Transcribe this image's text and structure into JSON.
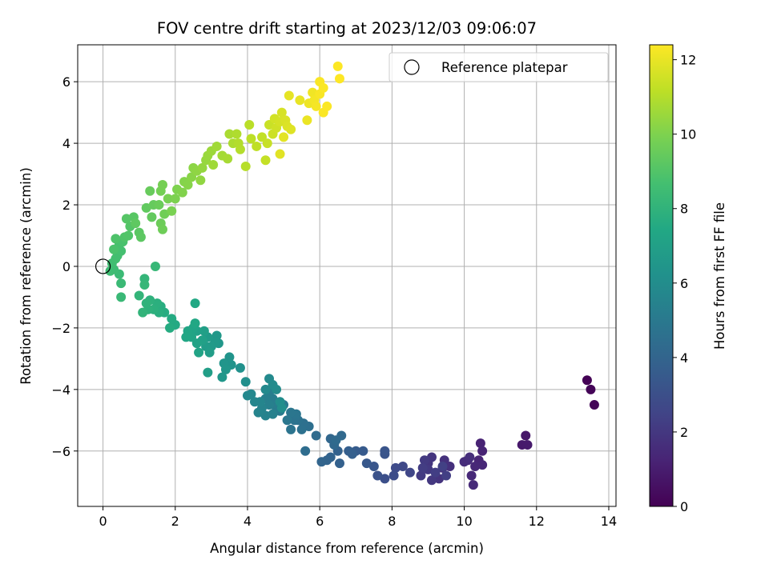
{
  "chart_data": {
    "type": "scatter",
    "title": "FOV centre drift starting at 2023/12/03 09:06:07",
    "xlabel": "Angular distance from reference (arcmin)",
    "ylabel": "Rotation from reference (arcmin)",
    "xlim": [
      -0.7,
      14.2
    ],
    "ylim": [
      -7.8,
      7.2
    ],
    "xticks": [
      0,
      2,
      4,
      6,
      8,
      10,
      12,
      14
    ],
    "yticks": [
      -6,
      -4,
      -2,
      0,
      2,
      4,
      6
    ],
    "grid": true,
    "legend": {
      "position": "top-right",
      "entries": [
        "Reference platepar"
      ]
    },
    "reference_point": {
      "x": 0,
      "y": 0
    },
    "colorbar": {
      "label": "Hours from first FF file",
      "colormap": "viridis",
      "range": [
        0,
        12.4
      ],
      "ticks": [
        0,
        2,
        4,
        6,
        8,
        10,
        12
      ]
    },
    "series": [
      {
        "color_value": "hours",
        "points": [
          [
            13.4,
            -3.7,
            0.05
          ],
          [
            13.5,
            -4.0,
            0.1
          ],
          [
            13.6,
            -4.5,
            0.15
          ],
          [
            11.7,
            -5.5,
            0.8
          ],
          [
            11.6,
            -5.8,
            0.85
          ],
          [
            11.75,
            -5.8,
            0.9
          ],
          [
            10.45,
            -5.75,
            1.2
          ],
          [
            10.5,
            -6.0,
            1.25
          ],
          [
            10.4,
            -6.3,
            1.3
          ],
          [
            10.5,
            -6.45,
            1.35
          ],
          [
            10.3,
            -6.5,
            1.4
          ],
          [
            10.2,
            -6.8,
            1.45
          ],
          [
            10.25,
            -7.1,
            1.5
          ],
          [
            10.1,
            -6.3,
            1.55
          ],
          [
            10.0,
            -6.35,
            1.6
          ],
          [
            10.15,
            -6.2,
            1.65
          ],
          [
            9.6,
            -6.5,
            1.7
          ],
          [
            9.45,
            -6.3,
            1.75
          ],
          [
            9.4,
            -6.55,
            1.8
          ],
          [
            9.3,
            -6.9,
            1.85
          ],
          [
            9.1,
            -6.2,
            1.9
          ],
          [
            9.0,
            -6.4,
            1.95
          ],
          [
            9.1,
            -6.95,
            2.0
          ],
          [
            9.0,
            -6.6,
            2.05
          ],
          [
            8.9,
            -6.3,
            2.1
          ],
          [
            8.8,
            -6.8,
            2.15
          ],
          [
            8.85,
            -6.55,
            2.2
          ],
          [
            9.2,
            -6.7,
            2.25
          ],
          [
            9.5,
            -6.8,
            2.3
          ],
          [
            9.4,
            -6.5,
            2.35
          ],
          [
            8.5,
            -6.7,
            2.6
          ],
          [
            8.3,
            -6.5,
            2.7
          ],
          [
            8.1,
            -6.55,
            2.8
          ],
          [
            8.05,
            -6.8,
            2.9
          ],
          [
            7.8,
            -6.9,
            3.0
          ],
          [
            7.6,
            -6.8,
            3.1
          ],
          [
            7.8,
            -6.1,
            3.2
          ],
          [
            7.8,
            -6.0,
            3.25
          ],
          [
            7.5,
            -6.5,
            3.3
          ],
          [
            7.3,
            -6.4,
            3.4
          ],
          [
            7.2,
            -6.0,
            3.5
          ],
          [
            7.0,
            -6.0,
            3.6
          ],
          [
            6.8,
            -6.0,
            3.7
          ],
          [
            6.9,
            -6.1,
            3.75
          ],
          [
            6.55,
            -6.4,
            3.8
          ],
          [
            6.5,
            -6.0,
            3.85
          ],
          [
            6.3,
            -6.2,
            3.9
          ],
          [
            6.2,
            -6.3,
            3.95
          ],
          [
            6.05,
            -6.35,
            4.0
          ],
          [
            6.3,
            -5.6,
            4.1
          ],
          [
            6.4,
            -5.8,
            4.15
          ],
          [
            6.6,
            -5.5,
            4.2
          ],
          [
            6.45,
            -5.65,
            4.25
          ],
          [
            5.9,
            -5.5,
            4.3
          ],
          [
            5.6,
            -6.0,
            4.4
          ],
          [
            5.7,
            -5.2,
            4.5
          ],
          [
            5.55,
            -5.1,
            4.55
          ],
          [
            5.5,
            -5.3,
            4.6
          ],
          [
            5.4,
            -5.0,
            4.65
          ],
          [
            5.3,
            -5.0,
            4.7
          ],
          [
            5.2,
            -5.3,
            4.75
          ],
          [
            5.35,
            -4.8,
            4.8
          ],
          [
            5.2,
            -4.75,
            4.85
          ],
          [
            5.1,
            -5.0,
            4.9
          ],
          [
            5.0,
            -4.5,
            5.0
          ],
          [
            4.9,
            -4.7,
            5.05
          ],
          [
            4.8,
            -4.6,
            5.1
          ],
          [
            4.75,
            -4.45,
            5.15
          ],
          [
            4.7,
            -4.3,
            5.2
          ],
          [
            4.6,
            -4.1,
            5.25
          ],
          [
            4.5,
            -4.3,
            5.3
          ],
          [
            4.6,
            -4.5,
            5.35
          ],
          [
            4.7,
            -4.8,
            5.4
          ],
          [
            4.5,
            -4.85,
            5.45
          ],
          [
            4.4,
            -4.6,
            5.5
          ],
          [
            4.3,
            -4.75,
            5.55
          ],
          [
            4.35,
            -4.4,
            5.6
          ],
          [
            4.2,
            -4.4,
            5.65
          ],
          [
            4.1,
            -4.15,
            5.7
          ],
          [
            4.0,
            -4.2,
            5.75
          ],
          [
            4.5,
            -4.0,
            5.8
          ],
          [
            4.6,
            -3.65,
            5.85
          ],
          [
            4.7,
            -3.85,
            5.9
          ],
          [
            4.8,
            -4.0,
            5.95
          ],
          [
            4.9,
            -4.4,
            6.0
          ],
          [
            4.95,
            -4.6,
            6.05
          ],
          [
            3.95,
            -3.75,
            6.1
          ],
          [
            3.8,
            -3.3,
            6.2
          ],
          [
            3.55,
            -3.2,
            6.3
          ],
          [
            3.5,
            -2.95,
            6.35
          ],
          [
            3.35,
            -3.15,
            6.4
          ],
          [
            3.4,
            -3.35,
            6.45
          ],
          [
            3.3,
            -3.6,
            6.5
          ],
          [
            3.2,
            -2.5,
            6.55
          ],
          [
            3.15,
            -2.25,
            6.6
          ],
          [
            3.1,
            -2.45,
            6.65
          ],
          [
            3.0,
            -2.6,
            6.7
          ],
          [
            2.9,
            -2.3,
            6.75
          ],
          [
            2.85,
            -2.6,
            6.8
          ],
          [
            2.95,
            -2.8,
            6.85
          ],
          [
            2.9,
            -3.45,
            6.9
          ],
          [
            2.8,
            -2.1,
            6.95
          ],
          [
            2.75,
            -2.4,
            7.0
          ],
          [
            2.6,
            -2.1,
            7.05
          ],
          [
            2.6,
            -2.5,
            7.1
          ],
          [
            2.65,
            -2.8,
            7.15
          ],
          [
            2.5,
            -2.0,
            7.2
          ],
          [
            2.45,
            -2.3,
            7.25
          ],
          [
            2.35,
            -2.1,
            7.3
          ],
          [
            2.3,
            -2.3,
            7.35
          ],
          [
            2.55,
            -1.85,
            7.4
          ],
          [
            2.55,
            -1.2,
            7.45
          ],
          [
            2.0,
            -1.9,
            7.5
          ],
          [
            1.9,
            -1.7,
            7.55
          ],
          [
            1.85,
            -2.0,
            7.6
          ],
          [
            1.7,
            -1.5,
            7.65
          ],
          [
            1.6,
            -1.3,
            7.7
          ],
          [
            1.55,
            -1.5,
            7.75
          ],
          [
            1.5,
            -1.2,
            7.8
          ],
          [
            1.4,
            -1.4,
            7.85
          ],
          [
            1.3,
            -1.1,
            7.9
          ],
          [
            1.25,
            -1.4,
            7.95
          ],
          [
            1.2,
            -1.2,
            8.0
          ],
          [
            1.1,
            -1.5,
            8.05
          ],
          [
            1.0,
            -0.95,
            8.1
          ],
          [
            1.15,
            -0.4,
            8.15
          ],
          [
            1.15,
            -0.6,
            8.2
          ],
          [
            1.45,
            0.0,
            8.25
          ],
          [
            0.5,
            -1.0,
            8.3
          ],
          [
            0.5,
            -0.55,
            8.35
          ],
          [
            0.45,
            -0.25,
            8.4
          ],
          [
            0.3,
            -0.1,
            8.45
          ],
          [
            0.2,
            -0.15,
            8.5
          ],
          [
            0.25,
            0.1,
            8.55
          ],
          [
            0.35,
            0.25,
            8.6
          ],
          [
            0.4,
            0.35,
            8.65
          ],
          [
            0.5,
            0.5,
            8.7
          ],
          [
            0.45,
            0.7,
            8.75
          ],
          [
            0.55,
            0.8,
            8.8
          ],
          [
            0.3,
            0.55,
            8.85
          ],
          [
            0.35,
            0.9,
            8.9
          ],
          [
            0.6,
            0.95,
            8.95
          ],
          [
            0.7,
            1.0,
            9.0
          ],
          [
            0.75,
            1.3,
            9.05
          ],
          [
            0.65,
            1.55,
            9.1
          ],
          [
            0.85,
            1.6,
            9.15
          ],
          [
            1.0,
            1.1,
            9.2
          ],
          [
            1.05,
            0.95,
            9.25
          ],
          [
            0.9,
            1.4,
            9.3
          ],
          [
            1.2,
            1.9,
            9.35
          ],
          [
            1.35,
            1.6,
            9.4
          ],
          [
            1.4,
            2.0,
            9.45
          ],
          [
            1.3,
            2.45,
            9.5
          ],
          [
            1.55,
            2.0,
            9.55
          ],
          [
            1.6,
            1.4,
            9.6
          ],
          [
            1.65,
            1.2,
            9.65
          ],
          [
            1.7,
            1.7,
            9.7
          ],
          [
            1.6,
            2.45,
            9.75
          ],
          [
            1.65,
            2.65,
            9.8
          ],
          [
            1.8,
            2.2,
            9.85
          ],
          [
            1.9,
            1.8,
            9.9
          ],
          [
            2.0,
            2.2,
            9.95
          ],
          [
            2.05,
            2.5,
            10.0
          ],
          [
            2.2,
            2.4,
            10.05
          ],
          [
            2.25,
            2.75,
            10.1
          ],
          [
            2.35,
            2.65,
            10.15
          ],
          [
            2.45,
            2.9,
            10.2
          ],
          [
            2.5,
            3.2,
            10.25
          ],
          [
            2.6,
            3.1,
            10.3
          ],
          [
            2.7,
            2.8,
            10.35
          ],
          [
            2.75,
            3.2,
            10.4
          ],
          [
            2.85,
            3.45,
            10.45
          ],
          [
            2.9,
            3.6,
            10.5
          ],
          [
            3.0,
            3.75,
            10.55
          ],
          [
            3.05,
            3.3,
            10.6
          ],
          [
            3.15,
            3.9,
            10.65
          ],
          [
            3.3,
            3.6,
            10.7
          ],
          [
            3.45,
            3.5,
            10.75
          ],
          [
            3.5,
            4.3,
            10.8
          ],
          [
            3.6,
            4.0,
            10.85
          ],
          [
            3.7,
            4.3,
            10.9
          ],
          [
            3.75,
            4.0,
            10.95
          ],
          [
            3.8,
            3.8,
            11.0
          ],
          [
            3.95,
            3.25,
            11.05
          ],
          [
            4.05,
            4.6,
            11.1
          ],
          [
            4.1,
            4.15,
            11.15
          ],
          [
            4.25,
            3.9,
            11.2
          ],
          [
            4.4,
            4.2,
            11.25
          ],
          [
            4.5,
            3.45,
            11.3
          ],
          [
            4.55,
            4.0,
            11.35
          ],
          [
            4.6,
            4.6,
            11.4
          ],
          [
            4.7,
            4.3,
            11.45
          ],
          [
            4.8,
            4.5,
            11.5
          ],
          [
            4.75,
            4.8,
            11.55
          ],
          [
            4.9,
            4.7,
            11.6
          ],
          [
            4.95,
            5.0,
            11.65
          ],
          [
            5.05,
            4.75,
            11.7
          ],
          [
            5.1,
            4.55,
            11.75
          ],
          [
            5.2,
            4.45,
            11.8
          ],
          [
            4.9,
            3.65,
            11.85
          ],
          [
            5.0,
            4.2,
            11.9
          ],
          [
            5.15,
            5.55,
            11.95
          ],
          [
            5.45,
            5.4,
            12.0
          ],
          [
            5.65,
            4.75,
            12.05
          ],
          [
            5.7,
            5.3,
            12.1
          ],
          [
            5.8,
            5.65,
            12.15
          ],
          [
            5.85,
            5.4,
            12.2
          ],
          [
            5.9,
            5.2,
            12.25
          ],
          [
            6.0,
            5.6,
            12.3
          ],
          [
            6.0,
            6.0,
            12.32
          ],
          [
            6.1,
            5.8,
            12.34
          ],
          [
            6.1,
            5.0,
            12.35
          ],
          [
            6.2,
            5.2,
            12.36
          ],
          [
            6.5,
            6.5,
            12.38
          ],
          [
            6.55,
            6.1,
            12.4
          ]
        ]
      }
    ]
  }
}
